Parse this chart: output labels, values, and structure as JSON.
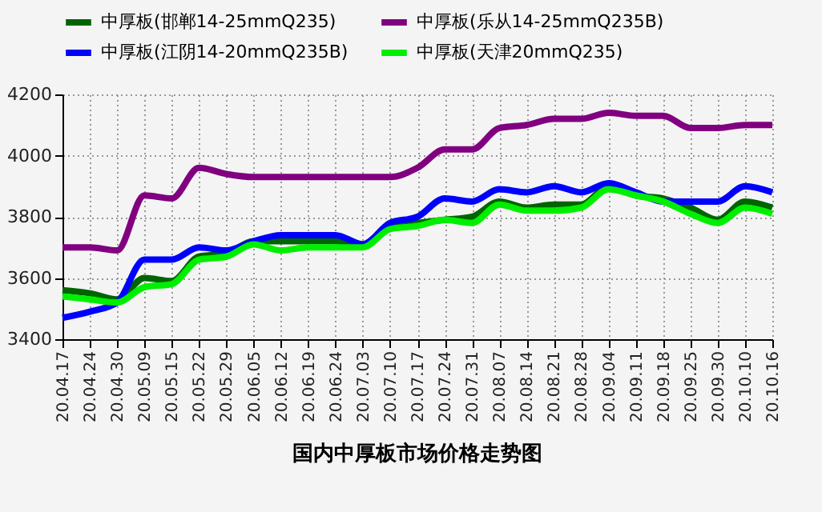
{
  "chart_data": {
    "type": "line",
    "title": "国内中厚板市场价格走势图",
    "categories": [
      "20.04.17",
      "20.04.24",
      "20.04.30",
      "20.05.09",
      "20.05.15",
      "20.05.22",
      "20.05.29",
      "20.06.05",
      "20.06.12",
      "20.06.19",
      "20.06.24",
      "20.07.03",
      "20.07.10",
      "20.07.17",
      "20.07.24",
      "20.07.31",
      "20.08.07",
      "20.08.14",
      "20.08.21",
      "20.08.28",
      "20.09.04",
      "20.09.11",
      "20.09.18",
      "20.09.25",
      "20.09.30",
      "20.10.10",
      "20.10.16"
    ],
    "series": [
      {
        "name": "中厚板(邯郸14-25mmQ235)",
        "color": "#006400",
        "values": [
          3560,
          3550,
          3530,
          3600,
          3590,
          3670,
          3680,
          3720,
          3720,
          3720,
          3720,
          3710,
          3770,
          3780,
          3790,
          3800,
          3850,
          3830,
          3840,
          3840,
          3900,
          3870,
          3860,
          3830,
          3790,
          3850,
          3830
        ]
      },
      {
        "name": "中厚板(乐从14-25mmQ235B)",
        "color": "#800080",
        "values": [
          3700,
          3700,
          3690,
          3870,
          3860,
          3960,
          3940,
          3930,
          3930,
          3930,
          3930,
          3930,
          3930,
          3960,
          4020,
          4020,
          4090,
          4100,
          4120,
          4120,
          4140,
          4130,
          4130,
          4090,
          4090,
          4100,
          4100
        ]
      },
      {
        "name": "中厚板(江阴14-20mmQ235B)",
        "color": "#0000ff",
        "values": [
          3470,
          3490,
          3520,
          3660,
          3660,
          3700,
          3690,
          3720,
          3740,
          3740,
          3740,
          3710,
          3780,
          3800,
          3860,
          3850,
          3890,
          3880,
          3900,
          3880,
          3910,
          3880,
          3850,
          3850,
          3850,
          3900,
          3880
        ]
      },
      {
        "name": "中厚板(天津20mmQ235)",
        "color": "#00ee00",
        "values": [
          3540,
          3530,
          3520,
          3570,
          3580,
          3660,
          3670,
          3710,
          3690,
          3700,
          3700,
          3700,
          3760,
          3770,
          3790,
          3780,
          3840,
          3820,
          3820,
          3830,
          3890,
          3870,
          3850,
          3810,
          3780,
          3830,
          3810
        ]
      }
    ],
    "ylim": [
      3400,
      4200
    ],
    "yticks": [
      3400,
      3600,
      3800,
      4000,
      4200
    ],
    "grid": true,
    "legend": "top",
    "line_style": "solid",
    "marker": "none"
  }
}
